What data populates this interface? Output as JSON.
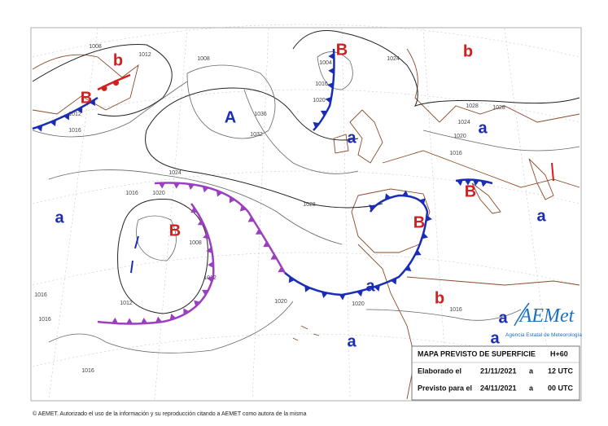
{
  "centers": [
    "B",
    "b",
    "B",
    "A",
    "a",
    "a",
    "b",
    "B",
    "a",
    "a",
    "B",
    "B",
    "a",
    "b",
    "a",
    "a",
    "a"
  ],
  "isobar_labels": [
    "1012",
    "1008",
    "1016",
    "1012",
    "1008",
    "1004",
    "1016",
    "1020",
    "1024",
    "1028",
    "1028",
    "1024",
    "1020",
    "1016",
    "1036",
    "1032",
    "1028",
    "1024",
    "1020",
    "1016",
    "1008",
    "1012",
    "1012",
    "1016",
    "1020",
    "1016",
    "1016",
    "1016",
    "1020"
  ],
  "info_box": {
    "title": "MAPA PREVISTO DE SUPERFICIE",
    "step": "H+60",
    "issued_label": "Elaborado el",
    "issued_date": "21/11/2021",
    "issued_at": "a",
    "issued_time": "12 UTC",
    "valid_label": "Previsto para el",
    "valid_date": "24/11/2021",
    "valid_at": "a",
    "valid_time": "00 UTC"
  },
  "logo": {
    "name": "AEMet",
    "subtitle": "Agencia Estatal de Meteorología"
  },
  "footer": "© AEMET. Autorizado el uso de la información y su reproducción citando a AEMET como autora de la misma"
}
